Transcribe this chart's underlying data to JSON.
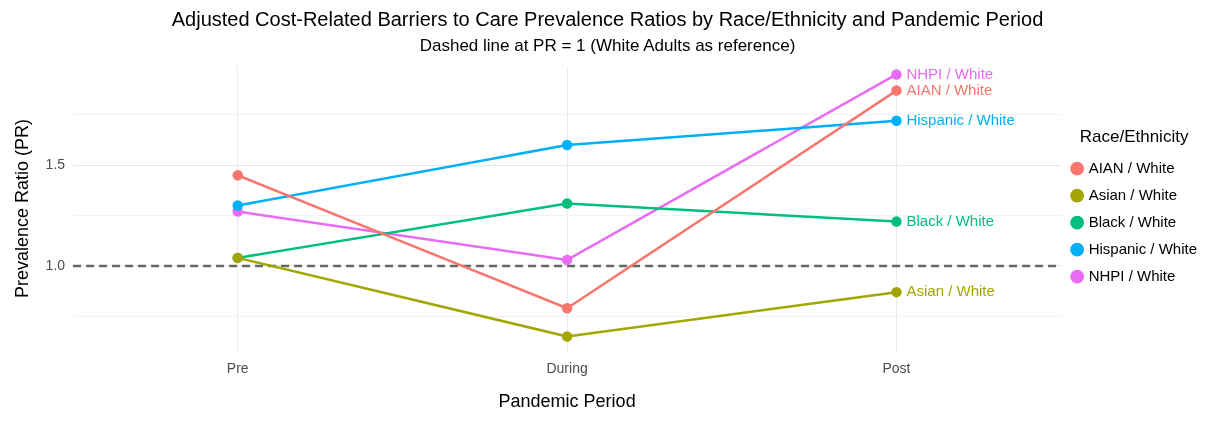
{
  "chart_data": {
    "type": "line",
    "title": "Adjusted Cost-Related Barriers to Care Prevalence Ratios by Race/Ethnicity and Pandemic Period",
    "subtitle": "Dashed line at PR = 1 (White Adults as reference)",
    "xlabel": "Pandemic Period",
    "ylabel": "Prevalence Ratio (PR)",
    "legend_title": "Race/Ethnicity",
    "categories": [
      "Pre",
      "During",
      "Post"
    ],
    "series": [
      {
        "name": "AIAN / White",
        "color": "#f8766d",
        "values": [
          1.45,
          0.79,
          1.87
        ]
      },
      {
        "name": "Asian / White",
        "color": "#a3a500",
        "values": [
          1.04,
          0.65,
          0.87
        ]
      },
      {
        "name": "Black / White",
        "color": "#00bf7d",
        "values": [
          1.04,
          1.31,
          1.22
        ]
      },
      {
        "name": "Hispanic / White",
        "color": "#00b0f6",
        "values": [
          1.3,
          1.6,
          1.72
        ]
      },
      {
        "name": "NHPI / White",
        "color": "#e76bf3",
        "values": [
          1.27,
          1.03,
          1.95
        ]
      }
    ],
    "ylim": [
      0.58,
      1.99
    ],
    "yticks": [
      {
        "value": 0.75,
        "label": null
      },
      {
        "value": 1,
        "label": "1.0"
      },
      {
        "value": 1.25,
        "label": null
      },
      1.5,
      {
        "value": 1.75,
        "label": null
      }
    ],
    "ref_lines": [
      {
        "axis": "y",
        "value": 1,
        "color": "#666666",
        "line_style": "dashed"
      }
    ],
    "grid": true,
    "legend": "right",
    "marker": "circle",
    "line_style": "solid"
  }
}
